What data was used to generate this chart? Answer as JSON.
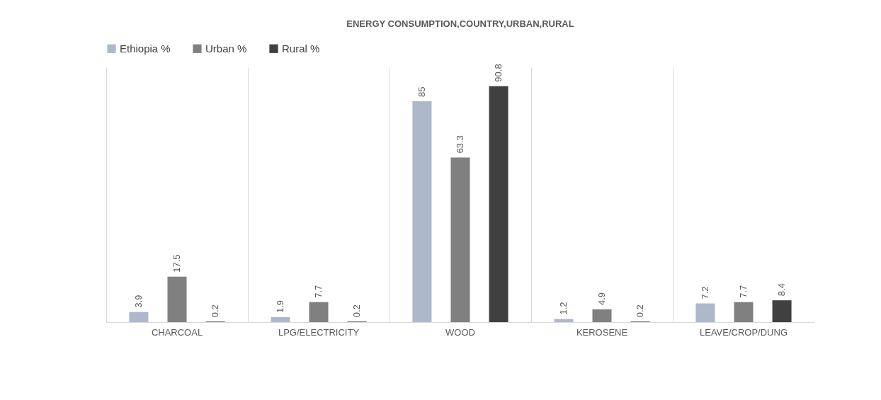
{
  "chart_data": {
    "type": "bar",
    "title": "ENERGY CONSUMPTION,COUNTRY,URBAN,RURAL",
    "categories": [
      "CHARCOAL",
      "LPG/ELECTRICITY",
      "WOOD",
      "KEROSENE",
      "LEAVE/CROP/DUNG"
    ],
    "series": [
      {
        "name": "Ethiopia %",
        "color": "#adb9ca",
        "values": [
          3.9,
          1.9,
          85,
          1.2,
          7.2
        ]
      },
      {
        "name": "Urban %",
        "color": "#808080",
        "values": [
          17.5,
          7.7,
          63.3,
          4.9,
          7.7
        ]
      },
      {
        "name": "Rural %",
        "color": "#404040",
        "values": [
          0.2,
          0.2,
          90.8,
          0.2,
          8.4
        ]
      }
    ],
    "data_labels": true,
    "grid": "x",
    "legend": "top"
  }
}
